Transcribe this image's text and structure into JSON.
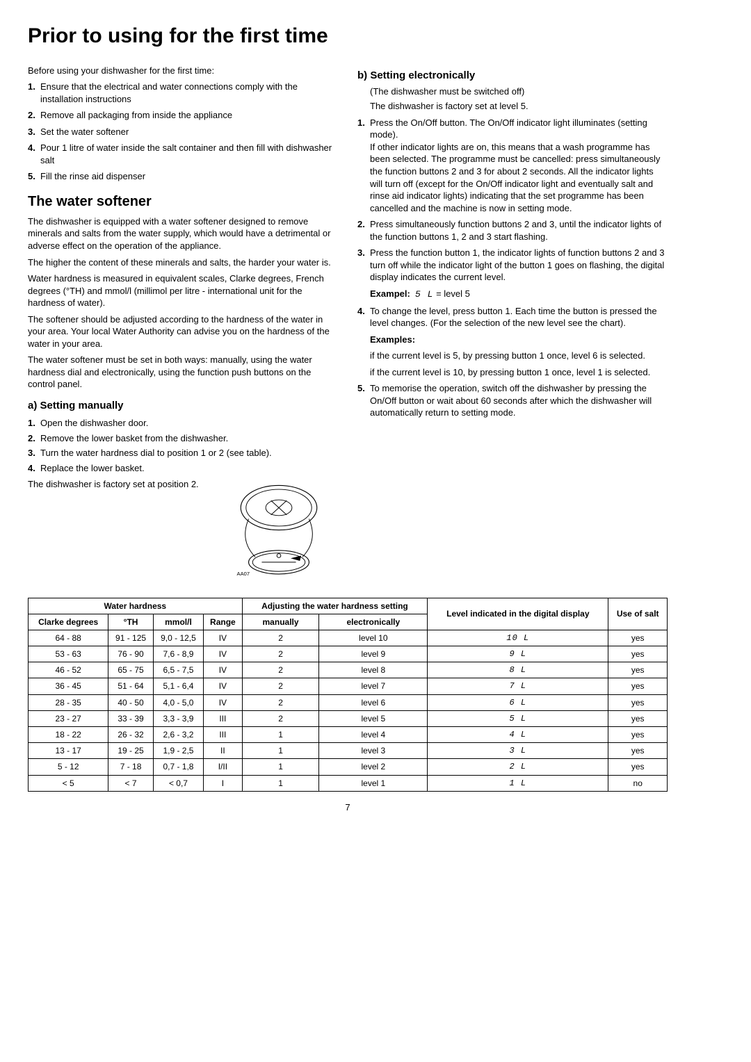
{
  "title": "Prior to using for the first time",
  "intro": "Before using your dishwasher for the first time:",
  "initial_steps": [
    "Ensure that the electrical and water connections comply with the installation instructions",
    "Remove all packaging from inside the appliance",
    "Set the water softener",
    "Pour 1 litre of water inside the salt container and then fill with dishwasher salt",
    "Fill the rinse aid dispenser"
  ],
  "softener": {
    "heading": "The water softener",
    "p1": "The dishwasher is equipped with a water softener designed to remove minerals and salts from the water supply, which would have a detrimental or adverse effect on the operation of the appliance.",
    "p2": "The higher the content of these minerals and salts, the harder your water is.",
    "p3": "Water hardness is measured in equivalent scales, Clarke degrees, French degrees (°TH) and mmol/l (millimol per litre - international unit for the hardness of water).",
    "p4": "The softener should be adjusted according to the hardness of the water in your area. Your local Water Authority can advise you on the hardness of the water in your area.",
    "p5": "The water softener must be set in both ways: manually, using the water hardness dial and electronically, using the function push buttons on the control panel."
  },
  "manual": {
    "heading": "a) Setting manually",
    "steps": [
      "Open the dishwasher door.",
      "Remove the lower basket from the dishwasher.",
      "Turn the water hardness dial to position 1 or 2 (see table).",
      "Replace the lower basket."
    ],
    "note": "The dishwasher is factory set at position 2.",
    "dial_label": "AA07"
  },
  "electronic": {
    "heading": "b) Setting electronically",
    "sub1": "(The dishwasher must be switched off)",
    "sub2": "The dishwasher is factory set at level 5.",
    "step1a": "Press the On/Off button. The On/Off indicator light illuminates (setting mode).",
    "step1b": "If other indicator lights are on, this means that a wash programme has been selected. The programme must be cancelled: press simultaneously the function buttons 2 and 3 for about 2 seconds. All the indicator lights will turn off (except for the On/Off indicator light and eventually salt and rinse aid indicator lights) indicating that the set programme has been cancelled and the machine is now in setting mode.",
    "step2": "Press simultaneously function buttons 2 and 3, until the indicator lights of the function buttons 1, 2 and 3 start flashing.",
    "step3": "Press the function button 1, the indicator lights of function buttons 2 and 3 turn off while the indicator light of the button 1 goes on flashing, the digital display indicates the current level.",
    "example_label": "Exampel:",
    "example_val": "5 L",
    "example_txt": " = level 5",
    "step4": "To change the level, press button 1. Each time the button is pressed the level changes. (For the selection of the new level see the chart).",
    "examples_label": "Examples:",
    "ex1": "if the current level is 5, by pressing button 1 once, level 6 is selected.",
    "ex2": "if the current level is 10, by pressing button 1 once, level 1 is selected.",
    "step5": "To memorise the operation, switch off the dishwasher by pressing the On/Off button or wait about 60 seconds after which the dishwasher will automatically return to setting mode."
  },
  "table": {
    "h_water_hardness": "Water hardness",
    "h_clarke": "Clarke degrees",
    "h_th": "°TH",
    "h_mmol": "mmol/l",
    "h_range": "Range",
    "h_adjusting": "Adjusting the water hardness setting",
    "h_manually": "manually",
    "h_electronically": "electronically",
    "h_level_indicated": "Level indicated in the digital display",
    "h_use_salt": "Use of salt",
    "rows": [
      {
        "clarke": "64 - 88",
        "th": "91 - 125",
        "mmol": "9,0 - 12,5",
        "range": "IV",
        "man": "2",
        "elec": "level 10",
        "disp": "10 L",
        "salt": "yes"
      },
      {
        "clarke": "53 - 63",
        "th": "76 - 90",
        "mmol": "7,6 - 8,9",
        "range": "IV",
        "man": "2",
        "elec": "level 9",
        "disp": "9 L",
        "salt": "yes"
      },
      {
        "clarke": "46 - 52",
        "th": "65 - 75",
        "mmol": "6,5 - 7,5",
        "range": "IV",
        "man": "2",
        "elec": "level 8",
        "disp": "8 L",
        "salt": "yes"
      },
      {
        "clarke": "36 - 45",
        "th": "51 - 64",
        "mmol": "5,1 - 6,4",
        "range": "IV",
        "man": "2",
        "elec": "level 7",
        "disp": "7 L",
        "salt": "yes"
      },
      {
        "clarke": "28 - 35",
        "th": "40 - 50",
        "mmol": "4,0 - 5,0",
        "range": "IV",
        "man": "2",
        "elec": "level 6",
        "disp": "6 L",
        "salt": "yes"
      },
      {
        "clarke": "23 - 27",
        "th": "33 - 39",
        "mmol": "3,3 - 3,9",
        "range": "III",
        "man": "2",
        "elec": "level 5",
        "disp": "5 L",
        "salt": "yes"
      },
      {
        "clarke": "18 - 22",
        "th": "26 - 32",
        "mmol": "2,6 - 3,2",
        "range": "III",
        "man": "1",
        "elec": "level 4",
        "disp": "4 L",
        "salt": "yes"
      },
      {
        "clarke": "13 - 17",
        "th": "19 - 25",
        "mmol": "1,9 - 2,5",
        "range": "II",
        "man": "1",
        "elec": "level 3",
        "disp": "3 L",
        "salt": "yes"
      },
      {
        "clarke": "5 - 12",
        "th": "7 - 18",
        "mmol": "0,7 - 1,8",
        "range": "I/II",
        "man": "1",
        "elec": "level 2",
        "disp": "2 L",
        "salt": "yes"
      },
      {
        "clarke": "< 5",
        "th": "< 7",
        "mmol": "< 0,7",
        "range": "I",
        "man": "1",
        "elec": "level 1",
        "disp": "1 L",
        "salt": "no"
      }
    ]
  },
  "page_num": "7"
}
